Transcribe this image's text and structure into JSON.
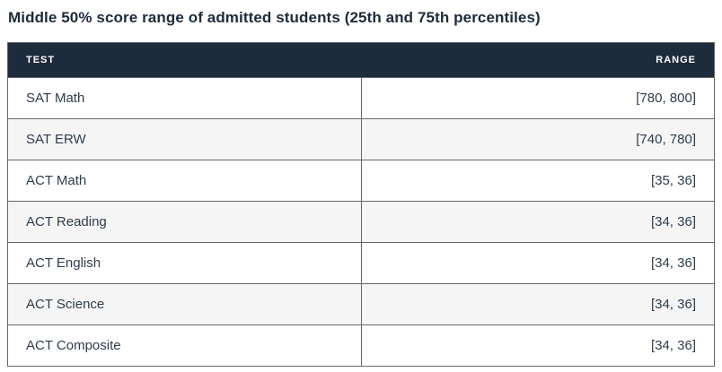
{
  "title": "Middle 50% score range of admitted students (25th and 75th percentiles)",
  "table": {
    "columns": [
      {
        "key": "test",
        "label": "TEST"
      },
      {
        "key": "range",
        "label": "RANGE"
      }
    ],
    "rows": [
      {
        "test": "SAT Math",
        "range": "[780, 800]"
      },
      {
        "test": "SAT ERW",
        "range": "[740, 780]"
      },
      {
        "test": "ACT Math",
        "range": "[35, 36]"
      },
      {
        "test": "ACT Reading",
        "range": "[34, 36]"
      },
      {
        "test": "ACT English",
        "range": "[34, 36]"
      },
      {
        "test": "ACT Science",
        "range": "[34, 36]"
      },
      {
        "test": "ACT Composite",
        "range": "[34, 36]"
      }
    ],
    "colors": {
      "header_bg": "#1e2b3c",
      "header_text": "#ffffff",
      "border": "#666666",
      "row_bg": "#ffffff",
      "row_alt_bg": "#f5f5f5",
      "body_text": "#2e3c4b",
      "title_text": "#1d2b3a"
    }
  },
  "chart_data": {
    "type": "table",
    "title": "Middle 50% score range of admitted students (25th and 75th percentiles)",
    "columns": [
      "TEST",
      "RANGE"
    ],
    "rows": [
      [
        "SAT Math",
        "[780, 800]"
      ],
      [
        "SAT ERW",
        "[740, 780]"
      ],
      [
        "ACT Math",
        "[35, 36]"
      ],
      [
        "ACT Reading",
        "[34, 36]"
      ],
      [
        "ACT English",
        "[34, 36]"
      ],
      [
        "ACT Science",
        "[34, 36]"
      ],
      [
        "ACT Composite",
        "[34, 36]"
      ]
    ],
    "percentiles": [
      {
        "test": "SAT Math",
        "p25": 780,
        "p75": 800
      },
      {
        "test": "SAT ERW",
        "p25": 740,
        "p75": 780
      },
      {
        "test": "ACT Math",
        "p25": 35,
        "p75": 36
      },
      {
        "test": "ACT Reading",
        "p25": 34,
        "p75": 36
      },
      {
        "test": "ACT English",
        "p25": 34,
        "p75": 36
      },
      {
        "test": "ACT Science",
        "p25": 34,
        "p75": 36
      },
      {
        "test": "ACT Composite",
        "p25": 34,
        "p75": 36
      }
    ],
    "legend_position": "none",
    "grid": true
  }
}
